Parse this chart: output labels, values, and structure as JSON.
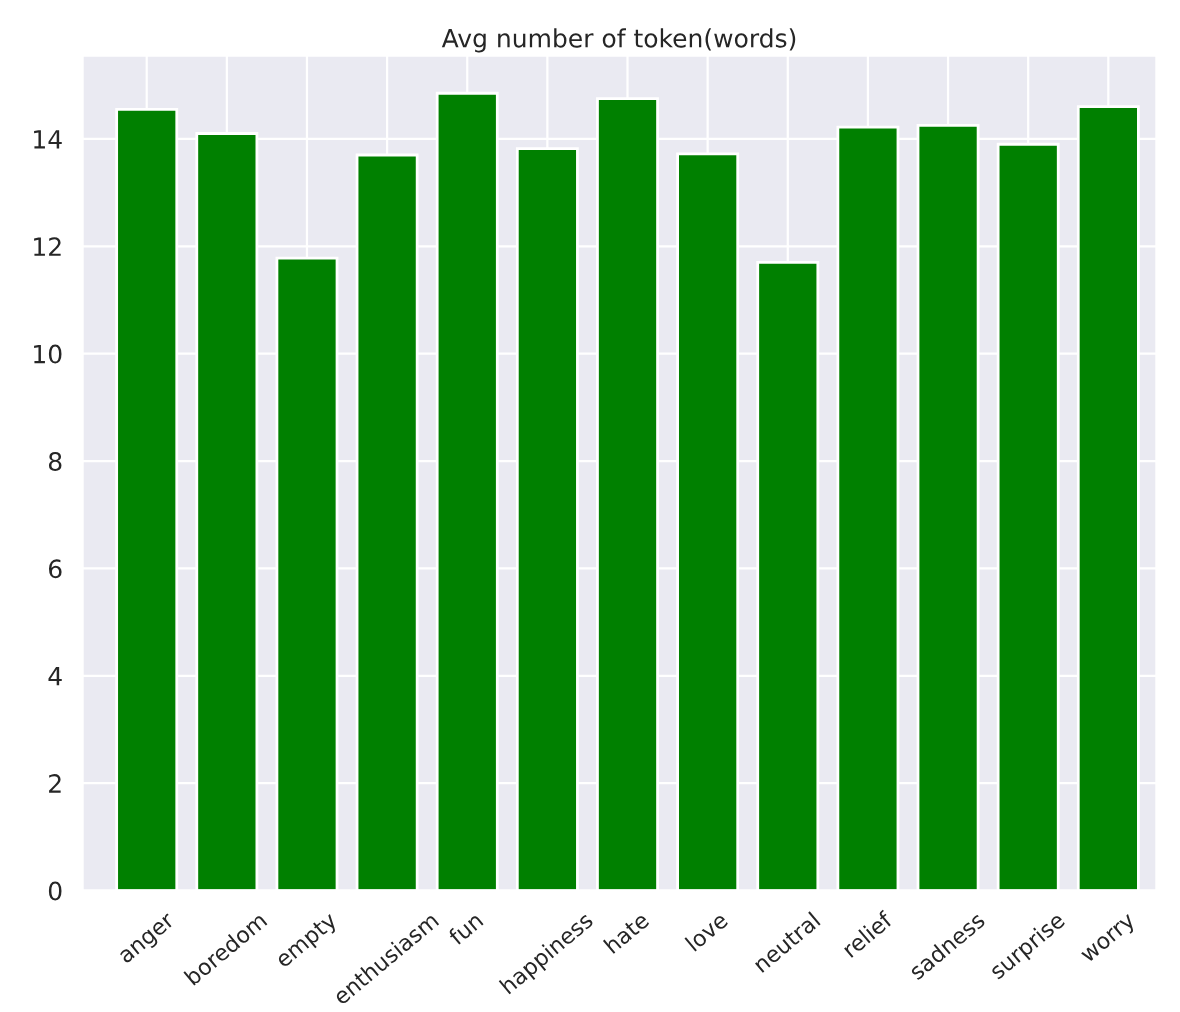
{
  "chart_data": {
    "type": "bar",
    "title": "Avg number of token(words)",
    "categories": [
      "anger",
      "boredom",
      "empty",
      "enthusiasm",
      "fun",
      "happiness",
      "hate",
      "love",
      "neutral",
      "relief",
      "sadness",
      "surprise",
      "worry"
    ],
    "values": [
      14.55,
      14.1,
      11.78,
      13.7,
      14.85,
      13.82,
      14.75,
      13.72,
      11.7,
      14.22,
      14.25,
      13.9,
      14.6
    ],
    "color": "#008000",
    "ylim": [
      0,
      15.55
    ],
    "yticks": [
      0,
      2,
      4,
      6,
      8,
      10,
      12,
      14
    ],
    "grid": true
  }
}
